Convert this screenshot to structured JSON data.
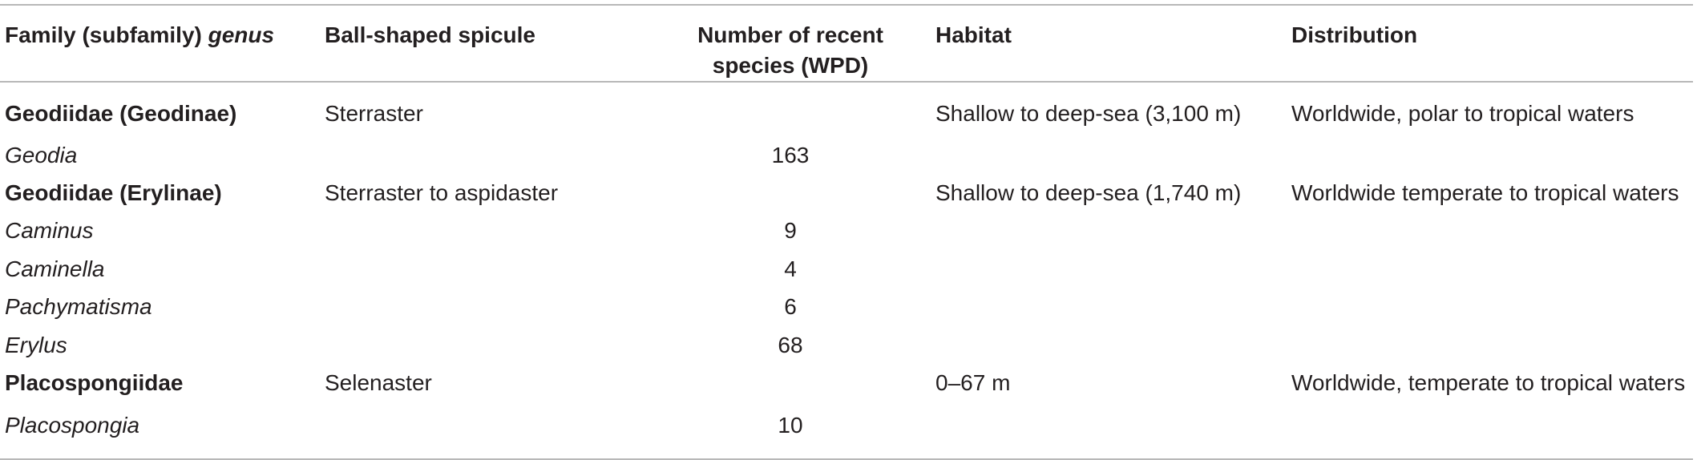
{
  "table": {
    "headers": {
      "family_prefix": "Family (subfamily) ",
      "family_genus_word": "genus",
      "spicule": "Ball-shaped spicule",
      "species_line1": "Number of recent",
      "species_line2": "species (WPD)",
      "habitat": "Habitat",
      "distribution": "Distribution"
    },
    "rows": [
      {
        "name": "Geodiidae (Geodinae)",
        "kind": "family",
        "spicule": "Sterraster",
        "species": "",
        "habitat": "Shallow to deep-sea (3,100 m)",
        "distribution": "Worldwide, polar to tropical waters"
      },
      {
        "name": "Geodia",
        "kind": "genus",
        "spicule": "",
        "species": "163",
        "habitat": "",
        "distribution": ""
      },
      {
        "name": "Geodiidae (Erylinae)",
        "kind": "family",
        "spicule": "Sterraster to aspidaster",
        "species": "",
        "habitat": "Shallow to deep-sea (1,740 m)",
        "distribution": "Worldwide temperate to tropical waters"
      },
      {
        "name": "Caminus",
        "kind": "genus",
        "spicule": "",
        "species": "9",
        "habitat": "",
        "distribution": ""
      },
      {
        "name": "Caminella",
        "kind": "genus",
        "spicule": "",
        "species": "4",
        "habitat": "",
        "distribution": ""
      },
      {
        "name": "Pachymatisma",
        "kind": "genus",
        "spicule": "",
        "species": "6",
        "habitat": "",
        "distribution": ""
      },
      {
        "name": "Erylus",
        "kind": "genus",
        "spicule": "",
        "species": "68",
        "habitat": "",
        "distribution": ""
      },
      {
        "name": "Placospongiidae",
        "kind": "family",
        "spicule": "Selenaster",
        "species": "",
        "habitat": "0–67 m",
        "distribution": "Worldwide, temperate to tropical waters"
      },
      {
        "name": "Placospongia",
        "kind": "genus",
        "spicule": "",
        "species": "10",
        "habitat": "",
        "distribution": ""
      }
    ]
  }
}
